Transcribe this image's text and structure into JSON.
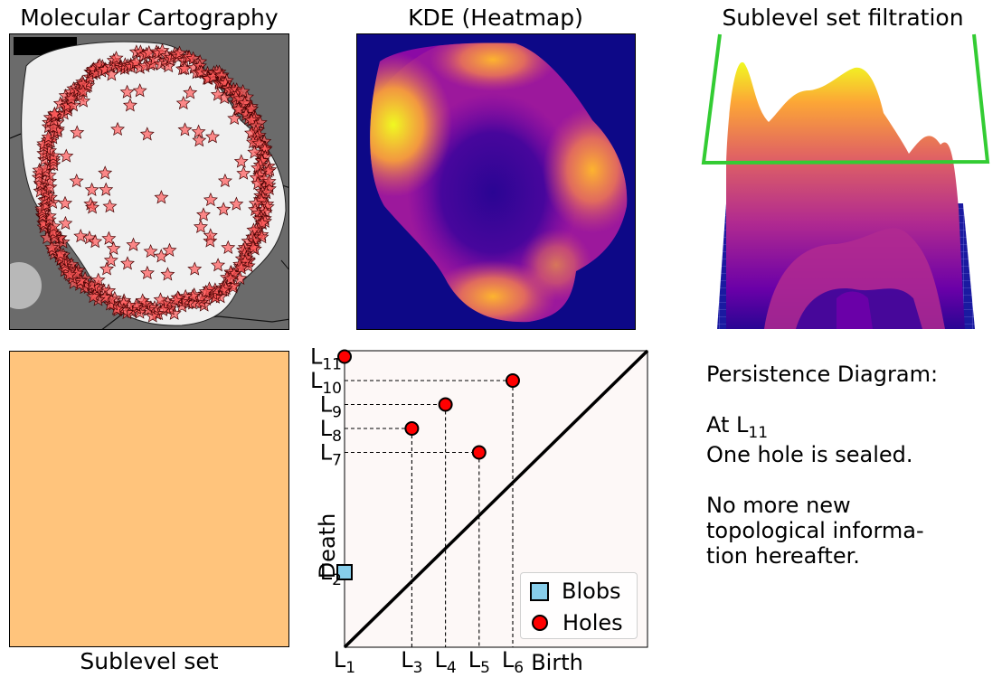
{
  "panels": {
    "cartography_title": "Molecular Cartography",
    "kde_title": "KDE (Heatmap)",
    "filtration_title": "Sublevel set filtration",
    "sublevel_label": "Sublevel set"
  },
  "note": {
    "heading": "Persistence Diagram:",
    "line_at": "At L",
    "line_at_sub": "11",
    "line_sealed": "One hole is sealed.",
    "line_more1": "No more new",
    "line_more2": "topological informa-",
    "line_more3": "tion hereafter."
  },
  "colors": {
    "sublevel_fill": "#ffc47c",
    "diagram_bg": "#fdf8f7",
    "hole_marker": "#ff0000",
    "blob_marker": "#87ceeb",
    "filtration_plane": "#33cc33",
    "heatmap_bg": "#0d0887"
  },
  "chart_data": {
    "type": "scatter",
    "title": "",
    "xlabel": "Birth",
    "ylabel": "Death",
    "x_ticks": [
      {
        "main": "L",
        "sub": "1",
        "value": 1
      },
      {
        "main": "L",
        "sub": "3",
        "value": 3
      },
      {
        "main": "L",
        "sub": "4",
        "value": 4
      },
      {
        "main": "L",
        "sub": "5",
        "value": 5
      },
      {
        "main": "L",
        "sub": "6",
        "value": 6
      }
    ],
    "y_ticks": [
      {
        "main": "L",
        "sub": "2",
        "value": 2
      },
      {
        "main": "L",
        "sub": "7",
        "value": 7
      },
      {
        "main": "L",
        "sub": "8",
        "value": 8
      },
      {
        "main": "L",
        "sub": "9",
        "value": 9
      },
      {
        "main": "L",
        "sub": "10",
        "value": 10
      },
      {
        "main": "L",
        "sub": "11",
        "value": 11
      }
    ],
    "diagonal": true,
    "dashed_guides": true,
    "legend_position": "lower-right",
    "series": [
      {
        "name": "Blobs",
        "marker": "square",
        "points": [
          {
            "birth": 1,
            "death": 2
          }
        ]
      },
      {
        "name": "Holes",
        "marker": "circle",
        "points": [
          {
            "birth": 1,
            "death": 11
          },
          {
            "birth": 3,
            "death": 8
          },
          {
            "birth": 4,
            "death": 9
          },
          {
            "birth": 5,
            "death": 7
          },
          {
            "birth": 6,
            "death": 10
          }
        ]
      }
    ]
  }
}
